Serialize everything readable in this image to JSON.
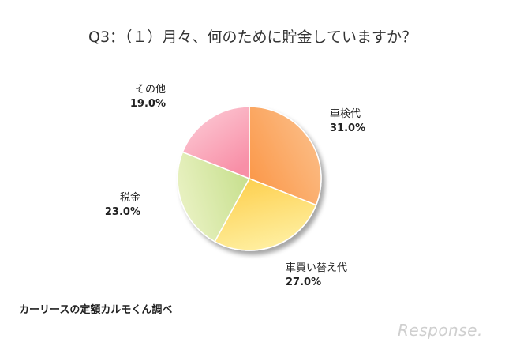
{
  "chart_data": {
    "type": "pie",
    "title": "Q3：（１）月々、何のために貯金していますか？",
    "slices": [
      {
        "label": "車検代",
        "value": 31.0,
        "display": "31.0%",
        "color_from": "#fbbd86",
        "color_to": "#fb9a4d"
      },
      {
        "label": "車買い替え代",
        "value": 27.0,
        "display": "27.0%",
        "color_from": "#fff0a3",
        "color_to": "#fdd152"
      },
      {
        "label": "税金",
        "value": 23.0,
        "display": "23.0%",
        "color_from": "#eaf2c4",
        "color_to": "#c8e08f"
      },
      {
        "label": "その他",
        "value": 19.0,
        "display": "19.0%",
        "color_from": "#fcc6d2",
        "color_to": "#f88fa7"
      }
    ],
    "start_angle_deg": 0,
    "direction": "clockwise"
  },
  "source_note": "カーリースの定額カルモくん調べ",
  "watermark": "Response."
}
